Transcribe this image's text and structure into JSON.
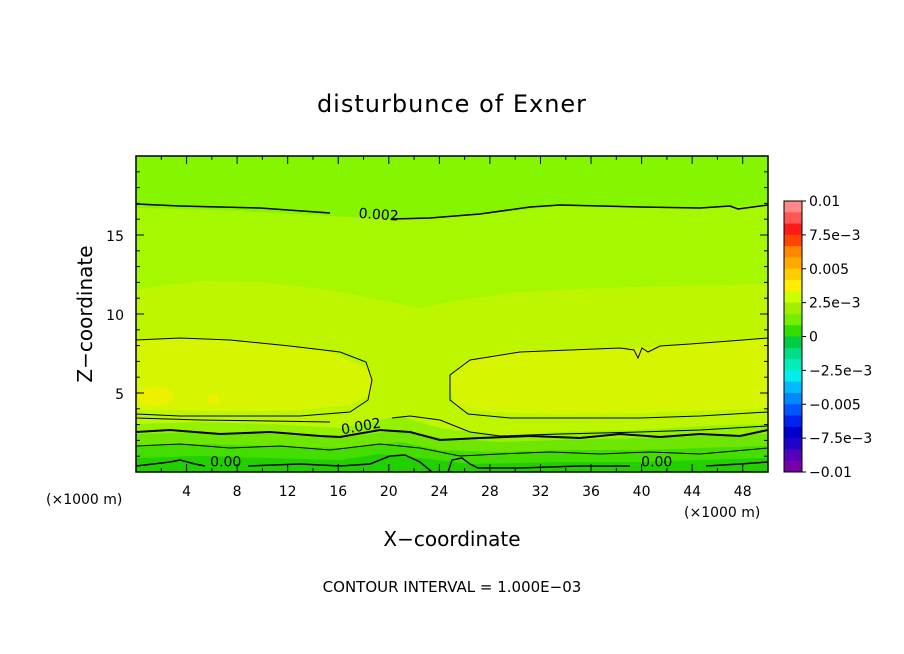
{
  "chart_data": {
    "type": "heatmap",
    "title": "disturbunce of Exner",
    "xlabel": "X−coordinate",
    "ylabel": "Z−coordinate",
    "x_units_left": "(×1000 m)",
    "x_units_right": "(×1000 m)",
    "xlim": [
      0,
      50
    ],
    "ylim": [
      0,
      20
    ],
    "x_ticks": [
      4,
      8,
      12,
      16,
      20,
      24,
      28,
      32,
      36,
      40,
      44,
      48
    ],
    "x_tick_labels": [
      "4",
      "8",
      "12",
      "16",
      "20",
      "24",
      "28",
      "32",
      "36",
      "40",
      "44",
      "48"
    ],
    "y_ticks": [
      5,
      10,
      15
    ],
    "y_tick_labels": [
      "5",
      "10",
      "15"
    ],
    "contour_interval_text": "CONTOUR INTERVAL = 1.000E−03",
    "contour_labels": [
      {
        "text": "0.002",
        "x": 19.2,
        "z": 16.0,
        "angle": 4
      },
      {
        "text": "0.002",
        "x": 17.8,
        "z": 2.6,
        "angle": -10
      },
      {
        "text": "0.00",
        "x": 7.1,
        "z": 0.35,
        "angle": 0
      },
      {
        "text": "0.00",
        "x": 41.2,
        "z": 0.35,
        "angle": 0
      }
    ],
    "colorbar": {
      "min": -0.01,
      "max": 0.01,
      "tick_values": [
        0.01,
        0.0075,
        0.005,
        0.0025,
        0,
        -0.0025,
        -0.005,
        -0.0075,
        -0.01
      ],
      "tick_labels": [
        "0.01",
        "7.5e−3",
        "0.005",
        "2.5e−3",
        "0",
        "−2.5e−3",
        "−0.005",
        "−7.5e−3",
        "−0.01"
      ],
      "colors_top_to_bottom": [
        "#ff8888",
        "#ff5555",
        "#ff1a1a",
        "#ff4400",
        "#ff8800",
        "#ffaa00",
        "#ffcc00",
        "#ffee00",
        "#ccff00",
        "#a0f000",
        "#77ee00",
        "#33dd00",
        "#00cc44",
        "#00dd88",
        "#00eebb",
        "#00eeee",
        "#00bbff",
        "#0088ff",
        "#0055ff",
        "#0022ee",
        "#0000cc",
        "#2200cc",
        "#5500bb",
        "#7700aa"
      ]
    }
  }
}
